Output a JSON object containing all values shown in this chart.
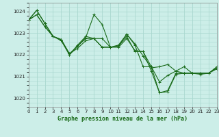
{
  "title": "",
  "xlabel": "Graphe pression niveau de la mer (hPa)",
  "ylabel": "",
  "bg_color": "#cceee8",
  "grid_color": "#aad8d0",
  "line_color": "#1a6b1a",
  "ylim": [
    1019.6,
    1024.4
  ],
  "xlim": [
    0,
    23
  ],
  "yticks": [
    1020,
    1021,
    1022,
    1023,
    1024
  ],
  "xticks": [
    0,
    1,
    2,
    3,
    4,
    5,
    6,
    7,
    8,
    9,
    10,
    11,
    12,
    13,
    14,
    15,
    16,
    17,
    18,
    19,
    20,
    21,
    22,
    23
  ],
  "series": [
    [
      1023.6,
      1023.85,
      1023.3,
      1022.85,
      1022.7,
      1022.05,
      1022.4,
      1022.75,
      1022.75,
      1022.35,
      1022.35,
      1022.35,
      1022.75,
      1022.2,
      1022.15,
      1021.45,
      1020.25,
      1020.35,
      1021.15,
      1021.15,
      1021.15,
      1021.15,
      1021.15,
      1021.4
    ],
    [
      1023.6,
      1023.85,
      1023.3,
      1022.85,
      1022.7,
      1022.05,
      1022.3,
      1022.65,
      1022.75,
      1022.75,
      1022.35,
      1022.45,
      1022.95,
      1022.45,
      1021.45,
      1021.45,
      1020.75,
      1021.05,
      1021.25,
      1021.45,
      1021.15,
      1021.15,
      1021.15,
      1021.4
    ],
    [
      1023.6,
      1024.05,
      1023.45,
      1022.85,
      1022.65,
      1022.0,
      1022.45,
      1022.85,
      1022.75,
      1022.35,
      1022.35,
      1022.4,
      1022.85,
      1022.15,
      1022.15,
      1021.25,
      1020.25,
      1020.3,
      1021.1,
      1021.15,
      1021.15,
      1021.15,
      1021.15,
      1021.35
    ],
    [
      1023.6,
      1024.05,
      1023.45,
      1022.85,
      1022.7,
      1022.0,
      1022.4,
      1022.8,
      1023.85,
      1023.4,
      1022.35,
      1022.4,
      1022.95,
      1022.5,
      1021.95,
      1021.4,
      1021.45,
      1021.55,
      1021.25,
      1021.15,
      1021.15,
      1021.1,
      1021.15,
      1021.45
    ]
  ]
}
